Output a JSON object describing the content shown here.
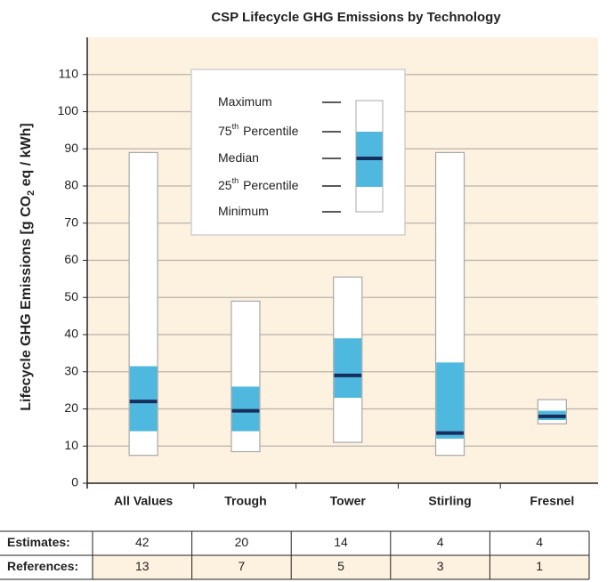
{
  "chart_data": {
    "type": "box",
    "title": "CSP Lifecycle GHG Emissions by Technology",
    "ylabel": {
      "main": "Lifecycle GHG Emissions [g CO",
      "sub": "2",
      "rest": " eq / kWh]"
    },
    "categories": [
      "All Values",
      "Trough",
      "Tower",
      "Stirling",
      "Fresnel"
    ],
    "min": [
      7.5,
      8.5,
      11,
      7.5,
      16
    ],
    "q1": [
      14,
      14,
      23,
      12,
      17
    ],
    "median": [
      22,
      19.5,
      29,
      13.5,
      18
    ],
    "q3": [
      31.5,
      26,
      39,
      32.5,
      19.5
    ],
    "max": [
      89,
      49,
      55.5,
      89,
      22.5
    ],
    "ylim": [
      0,
      120
    ],
    "yticks": [
      0,
      10,
      20,
      30,
      40,
      50,
      60,
      70,
      80,
      90,
      100,
      110
    ],
    "grid": true,
    "colors": {
      "whisker": "#ffffff",
      "box": "#4fb8de",
      "median": "#172d5c",
      "plot": "#fdf1df"
    },
    "legend": [
      {
        "text": "Maximum"
      },
      {
        "number": "75",
        "suffix": "th",
        "text": "Percentile"
      },
      {
        "text": "Median"
      },
      {
        "number": "25",
        "suffix": "th",
        "text": "Percentile"
      },
      {
        "text": "Minimum"
      }
    ]
  },
  "table": {
    "rows": [
      {
        "label": "Estimates:",
        "values": [
          42,
          20,
          14,
          4,
          4
        ]
      },
      {
        "label": "References:",
        "values": [
          13,
          7,
          5,
          3,
          1
        ]
      }
    ]
  }
}
